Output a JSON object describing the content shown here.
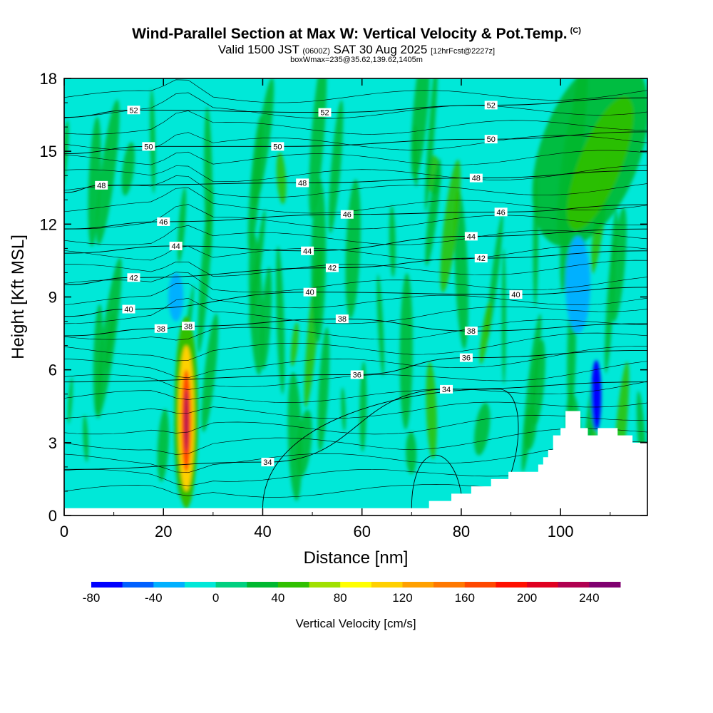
{
  "title": "Wind-Parallel Section at Max W: Vertical Velocity & Pot.Temp.",
  "copyright": "(C)",
  "subtitle": {
    "valid": "Valid 1500 JST",
    "utc": "(0600Z)",
    "date": "SAT 30 Aug 2025",
    "fcst": "[12hrFcst@2227z]"
  },
  "subtitle2": "boxWmax=235@35.62,139.62,1405m",
  "colors": {
    "background_fill": "#00e8d8",
    "frame": "#000000",
    "terrain": "#ffffff"
  },
  "chart_data": {
    "type": "heatmap",
    "title": "Wind-Parallel Section at Max W: Vertical Velocity & Pot.Temp.",
    "xlabel": "Distance [nm]",
    "ylabel": "Height [Kft MSL]",
    "xlim": [
      0,
      117.5
    ],
    "ylim": [
      0,
      18
    ],
    "xticks": [
      0,
      20,
      40,
      60,
      80,
      100
    ],
    "yticks": [
      0,
      3,
      6,
      9,
      12,
      15,
      18
    ],
    "colorbar": {
      "label": "Vertical Velocity [cm/s]",
      "min": -80,
      "max": 260,
      "step": 20,
      "ticks": [
        -80,
        -40,
        0,
        40,
        80,
        120,
        160,
        200,
        240
      ],
      "colors": [
        "#0000ff",
        "#0060ff",
        "#00b0ff",
        "#00e8d8",
        "#00d080",
        "#00b830",
        "#30c000",
        "#a0e000",
        "#ffff00",
        "#ffd000",
        "#ffa000",
        "#ff7800",
        "#ff4800",
        "#ff1000",
        "#e00020",
        "#b00050",
        "#800070"
      ]
    },
    "terrain_profile": [
      {
        "x": 0,
        "y": 0.3
      },
      {
        "x": 73.5,
        "y": 0.3
      },
      {
        "x": 73.5,
        "y": 0.6
      },
      {
        "x": 78,
        "y": 0.6
      },
      {
        "x": 78,
        "y": 0.9
      },
      {
        "x": 82,
        "y": 0.9
      },
      {
        "x": 82,
        "y": 1.2
      },
      {
        "x": 86,
        "y": 1.2
      },
      {
        "x": 86,
        "y": 1.5
      },
      {
        "x": 89.5,
        "y": 1.5
      },
      {
        "x": 89.5,
        "y": 1.8
      },
      {
        "x": 95.5,
        "y": 1.8
      },
      {
        "x": 95.5,
        "y": 2.1
      },
      {
        "x": 96.5,
        "y": 2.1
      },
      {
        "x": 96.5,
        "y": 2.4
      },
      {
        "x": 97.5,
        "y": 2.4
      },
      {
        "x": 97.5,
        "y": 2.7
      },
      {
        "x": 98.5,
        "y": 2.7
      },
      {
        "x": 98.5,
        "y": 3.3
      },
      {
        "x": 100,
        "y": 3.3
      },
      {
        "x": 100,
        "y": 3.6
      },
      {
        "x": 101,
        "y": 3.6
      },
      {
        "x": 101,
        "y": 4.3
      },
      {
        "x": 104,
        "y": 4.3
      },
      {
        "x": 104,
        "y": 3.6
      },
      {
        "x": 105.5,
        "y": 3.6
      },
      {
        "x": 105.5,
        "y": 3.3
      },
      {
        "x": 107.5,
        "y": 3.3
      },
      {
        "x": 107.5,
        "y": 3.6
      },
      {
        "x": 111.5,
        "y": 3.6
      },
      {
        "x": 111.5,
        "y": 3.3
      },
      {
        "x": 114.5,
        "y": 3.3
      },
      {
        "x": 114.5,
        "y": 3.0
      },
      {
        "x": 117.5,
        "y": 3.0
      }
    ],
    "features": [
      {
        "name": "updraft-core",
        "x": 24.5,
        "y0": 0.6,
        "y1": 7.8,
        "width": 4.0,
        "value": 235
      },
      {
        "name": "updraft-mid",
        "x": 24.5,
        "y0": 1.5,
        "y1": 6.6,
        "width": 2.4,
        "value": 140
      },
      {
        "name": "updraft-peak",
        "x": 24.6,
        "y0": 2.5,
        "y1": 5.5,
        "width": 1.2,
        "value": 200
      },
      {
        "name": "downdraft-east",
        "x": 107.2,
        "y0": 3.5,
        "y1": 6.4,
        "width": 2.0,
        "value": -70
      },
      {
        "name": "downdraft-east-upper",
        "x": 103.5,
        "y0": 7.5,
        "y1": 11.5,
        "width": 5.0,
        "value": -30
      },
      {
        "name": "downdraft-tilted",
        "x": 22.5,
        "y0": 8.0,
        "y1": 10.0,
        "width": 3.0,
        "value": -30
      }
    ],
    "contours": {
      "variable": "Potential Temperature",
      "levels": [
        34,
        36,
        38,
        40,
        42,
        44,
        46,
        48,
        50,
        52
      ],
      "label_points": [
        {
          "label": "52",
          "x": 14,
          "y": 16.7
        },
        {
          "label": "52",
          "x": 52.5,
          "y": 16.6
        },
        {
          "label": "52",
          "x": 86,
          "y": 16.9
        },
        {
          "label": "50",
          "x": 17,
          "y": 15.2
        },
        {
          "label": "50",
          "x": 43,
          "y": 15.2
        },
        {
          "label": "50",
          "x": 86,
          "y": 15.5
        },
        {
          "label": "48",
          "x": 7.5,
          "y": 13.6
        },
        {
          "label": "48",
          "x": 48,
          "y": 13.7
        },
        {
          "label": "48",
          "x": 83,
          "y": 13.9
        },
        {
          "label": "46",
          "x": 20,
          "y": 12.1
        },
        {
          "label": "46",
          "x": 57,
          "y": 12.4
        },
        {
          "label": "46",
          "x": 88,
          "y": 12.5
        },
        {
          "label": "44",
          "x": 22.5,
          "y": 11.1
        },
        {
          "label": "44",
          "x": 49,
          "y": 10.9
        },
        {
          "label": "44",
          "x": 82,
          "y": 11.5
        },
        {
          "label": "42",
          "x": 14,
          "y": 9.8
        },
        {
          "label": "42",
          "x": 54,
          "y": 10.2
        },
        {
          "label": "42",
          "x": 84,
          "y": 10.6
        },
        {
          "label": "40",
          "x": 13,
          "y": 8.5
        },
        {
          "label": "40",
          "x": 49.5,
          "y": 9.2
        },
        {
          "label": "40",
          "x": 91,
          "y": 9.1
        },
        {
          "label": "38",
          "x": 19.5,
          "y": 7.7
        },
        {
          "label": "38",
          "x": 25,
          "y": 7.8
        },
        {
          "label": "38",
          "x": 56,
          "y": 8.1
        },
        {
          "label": "38",
          "x": 82,
          "y": 7.6
        },
        {
          "label": "36",
          "x": 59,
          "y": 5.8
        },
        {
          "label": "36",
          "x": 81,
          "y": 6.5
        },
        {
          "label": "34",
          "x": 41,
          "y": 2.2
        },
        {
          "label": "34",
          "x": 77,
          "y": 5.2
        }
      ]
    }
  }
}
